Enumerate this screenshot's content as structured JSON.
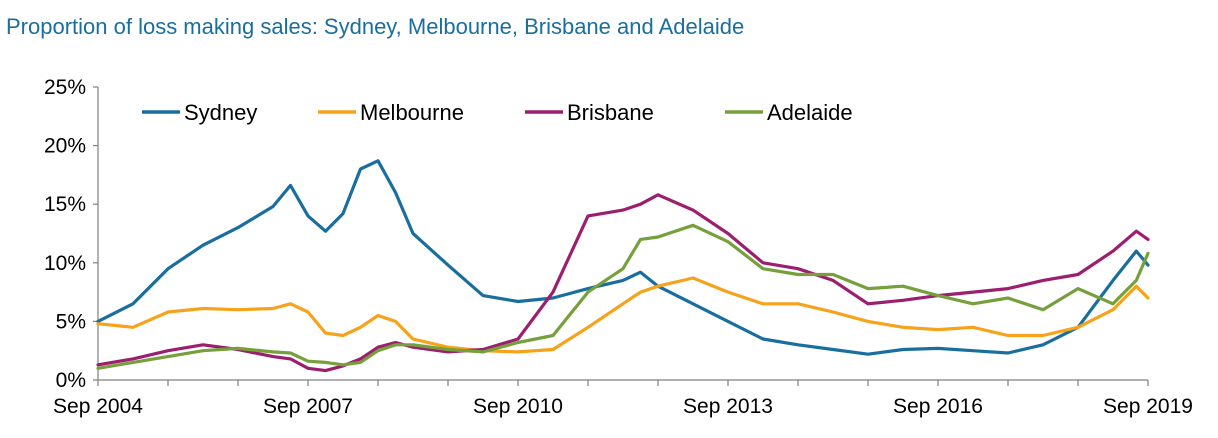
{
  "title": "Proportion of loss making sales: Sydney, Melbourne, Brisbane and Adelaide",
  "chart_data": {
    "type": "line",
    "title": "Proportion of loss making sales: Sydney, Melbourne, Brisbane and Adelaide",
    "xlabel": "",
    "ylabel": "",
    "x_start": "Sep 2004",
    "x_end": "Sep 2019",
    "x_ticks": [
      "Sep 2004",
      "Sep 2007",
      "Sep 2010",
      "Sep 2013",
      "Sep 2016",
      "Sep 2019"
    ],
    "y_ticks": [
      "0%",
      "5%",
      "10%",
      "15%",
      "20%",
      "25%"
    ],
    "ylim": [
      0,
      25
    ],
    "y_unit": "%",
    "legend": "top-left",
    "grid": false,
    "series": [
      {
        "name": "Sydney",
        "color": "#1a6e9e",
        "points": [
          [
            "Sep 2004",
            5.0
          ],
          [
            "Mar 2005",
            6.5
          ],
          [
            "Sep 2005",
            9.5
          ],
          [
            "Mar 2006",
            11.5
          ],
          [
            "Sep 2006",
            13.0
          ],
          [
            "Mar 2007",
            14.8
          ],
          [
            "Jun 2007",
            16.6
          ],
          [
            "Sep 2007",
            14.0
          ],
          [
            "Dec 2007",
            12.7
          ],
          [
            "Mar 2008",
            14.2
          ],
          [
            "Jun 2008",
            18.0
          ],
          [
            "Sep 2008",
            18.7
          ],
          [
            "Dec 2008",
            16.0
          ],
          [
            "Mar 2009",
            12.5
          ],
          [
            "Sep 2009",
            9.8
          ],
          [
            "Mar 2010",
            7.2
          ],
          [
            "Sep 2010",
            6.7
          ],
          [
            "Mar 2011",
            7.0
          ],
          [
            "Sep 2011",
            7.8
          ],
          [
            "Mar 2012",
            8.5
          ],
          [
            "Jun 2012",
            9.2
          ],
          [
            "Sep 2012",
            8.0
          ],
          [
            "Mar 2013",
            6.5
          ],
          [
            "Sep 2013",
            5.0
          ],
          [
            "Mar 2014",
            3.5
          ],
          [
            "Sep 2014",
            3.0
          ],
          [
            "Mar 2015",
            2.6
          ],
          [
            "Sep 2015",
            2.2
          ],
          [
            "Mar 2016",
            2.6
          ],
          [
            "Sep 2016",
            2.7
          ],
          [
            "Mar 2017",
            2.5
          ],
          [
            "Sep 2017",
            2.3
          ],
          [
            "Mar 2018",
            3.0
          ],
          [
            "Sep 2018",
            4.5
          ],
          [
            "Mar 2019",
            8.5
          ],
          [
            "Jul 2019",
            11.0
          ],
          [
            "Sep 2019",
            9.8
          ]
        ]
      },
      {
        "name": "Melbourne",
        "color": "#f7a21b",
        "points": [
          [
            "Sep 2004",
            4.8
          ],
          [
            "Mar 2005",
            4.5
          ],
          [
            "Sep 2005",
            5.8
          ],
          [
            "Mar 2006",
            6.1
          ],
          [
            "Sep 2006",
            6.0
          ],
          [
            "Mar 2007",
            6.1
          ],
          [
            "Jun 2007",
            6.5
          ],
          [
            "Sep 2007",
            5.8
          ],
          [
            "Dec 2007",
            4.0
          ],
          [
            "Mar 2008",
            3.8
          ],
          [
            "Jun 2008",
            4.5
          ],
          [
            "Sep 2008",
            5.5
          ],
          [
            "Dec 2008",
            5.0
          ],
          [
            "Mar 2009",
            3.5
          ],
          [
            "Sep 2009",
            2.8
          ],
          [
            "Mar 2010",
            2.5
          ],
          [
            "Sep 2010",
            2.4
          ],
          [
            "Mar 2011",
            2.6
          ],
          [
            "Sep 2011",
            4.5
          ],
          [
            "Mar 2012",
            6.5
          ],
          [
            "Jun 2012",
            7.5
          ],
          [
            "Sep 2012",
            8.0
          ],
          [
            "Mar 2013",
            8.7
          ],
          [
            "Sep 2013",
            7.5
          ],
          [
            "Mar 2014",
            6.5
          ],
          [
            "Sep 2014",
            6.5
          ],
          [
            "Mar 2015",
            5.8
          ],
          [
            "Sep 2015",
            5.0
          ],
          [
            "Mar 2016",
            4.5
          ],
          [
            "Sep 2016",
            4.3
          ],
          [
            "Mar 2017",
            4.5
          ],
          [
            "Sep 2017",
            3.8
          ],
          [
            "Mar 2018",
            3.8
          ],
          [
            "Sep 2018",
            4.5
          ],
          [
            "Mar 2019",
            6.0
          ],
          [
            "Jul 2019",
            8.0
          ],
          [
            "Sep 2019",
            7.0
          ]
        ]
      },
      {
        "name": "Brisbane",
        "color": "#9b1f6e",
        "points": [
          [
            "Sep 2004",
            1.3
          ],
          [
            "Mar 2005",
            1.8
          ],
          [
            "Sep 2005",
            2.5
          ],
          [
            "Mar 2006",
            3.0
          ],
          [
            "Sep 2006",
            2.6
          ],
          [
            "Mar 2007",
            2.0
          ],
          [
            "Jun 2007",
            1.8
          ],
          [
            "Sep 2007",
            1.0
          ],
          [
            "Dec 2007",
            0.8
          ],
          [
            "Mar 2008",
            1.2
          ],
          [
            "Jun 2008",
            1.8
          ],
          [
            "Sep 2008",
            2.8
          ],
          [
            "Dec 2008",
            3.2
          ],
          [
            "Mar 2009",
            2.8
          ],
          [
            "Sep 2009",
            2.4
          ],
          [
            "Mar 2010",
            2.6
          ],
          [
            "Sep 2010",
            3.5
          ],
          [
            "Mar 2011",
            7.5
          ],
          [
            "Sep 2011",
            14.0
          ],
          [
            "Mar 2012",
            14.5
          ],
          [
            "Jun 2012",
            15.0
          ],
          [
            "Sep 2012",
            15.8
          ],
          [
            "Mar 2013",
            14.5
          ],
          [
            "Sep 2013",
            12.5
          ],
          [
            "Mar 2014",
            10.0
          ],
          [
            "Sep 2014",
            9.5
          ],
          [
            "Mar 2015",
            8.5
          ],
          [
            "Sep 2015",
            6.5
          ],
          [
            "Mar 2016",
            6.8
          ],
          [
            "Sep 2016",
            7.2
          ],
          [
            "Mar 2017",
            7.5
          ],
          [
            "Sep 2017",
            7.8
          ],
          [
            "Mar 2018",
            8.5
          ],
          [
            "Sep 2018",
            9.0
          ],
          [
            "Mar 2019",
            11.0
          ],
          [
            "Jul 2019",
            12.7
          ],
          [
            "Sep 2019",
            12.0
          ]
        ]
      },
      {
        "name": "Adelaide",
        "color": "#76a03c",
        "points": [
          [
            "Sep 2004",
            1.0
          ],
          [
            "Mar 2005",
            1.5
          ],
          [
            "Sep 2005",
            2.0
          ],
          [
            "Mar 2006",
            2.5
          ],
          [
            "Sep 2006",
            2.7
          ],
          [
            "Mar 2007",
            2.4
          ],
          [
            "Jun 2007",
            2.3
          ],
          [
            "Sep 2007",
            1.6
          ],
          [
            "Dec 2007",
            1.5
          ],
          [
            "Mar 2008",
            1.3
          ],
          [
            "Jun 2008",
            1.5
          ],
          [
            "Sep 2008",
            2.5
          ],
          [
            "Dec 2008",
            3.0
          ],
          [
            "Mar 2009",
            3.0
          ],
          [
            "Sep 2009",
            2.6
          ],
          [
            "Mar 2010",
            2.4
          ],
          [
            "Sep 2010",
            3.2
          ],
          [
            "Mar 2011",
            3.8
          ],
          [
            "Sep 2011",
            7.5
          ],
          [
            "Mar 2012",
            9.5
          ],
          [
            "Jun 2012",
            12.0
          ],
          [
            "Sep 2012",
            12.2
          ],
          [
            "Mar 2013",
            13.2
          ],
          [
            "Sep 2013",
            11.8
          ],
          [
            "Mar 2014",
            9.5
          ],
          [
            "Sep 2014",
            9.0
          ],
          [
            "Mar 2015",
            9.0
          ],
          [
            "Sep 2015",
            7.8
          ],
          [
            "Mar 2016",
            8.0
          ],
          [
            "Sep 2016",
            7.2
          ],
          [
            "Mar 2017",
            6.5
          ],
          [
            "Sep 2017",
            7.0
          ],
          [
            "Mar 2018",
            6.0
          ],
          [
            "Sep 2018",
            7.8
          ],
          [
            "Mar 2019",
            6.5
          ],
          [
            "Jul 2019",
            8.5
          ],
          [
            "Sep 2019",
            10.8
          ]
        ]
      }
    ]
  }
}
